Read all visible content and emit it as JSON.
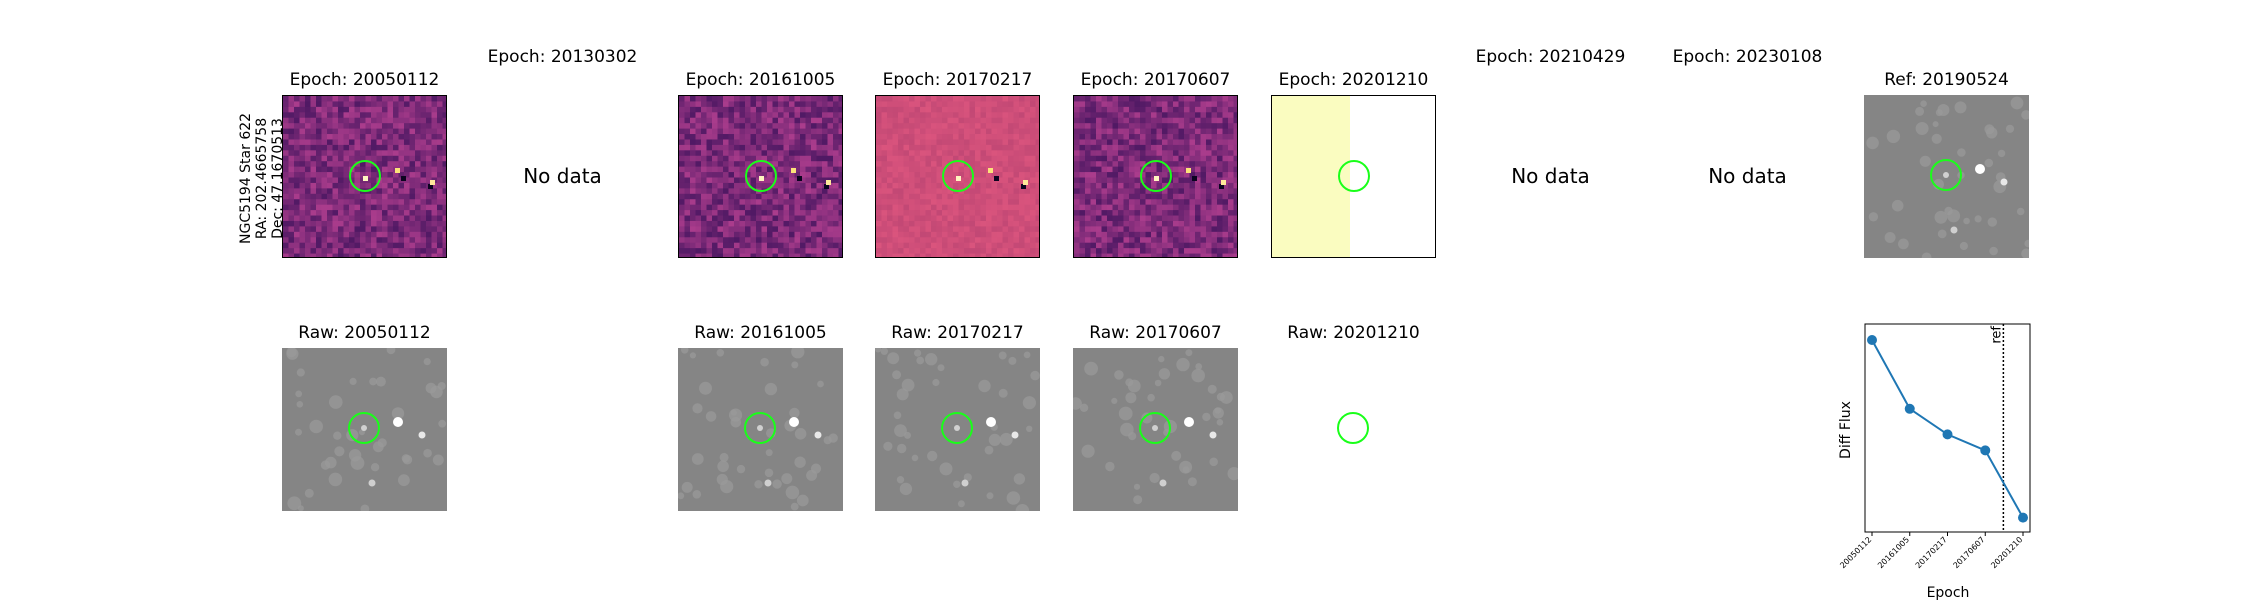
{
  "star_info": {
    "line1": "NGC5194 Star 622",
    "line2": "RA: 202.4665758",
    "line3": "Dec: 47.1670513"
  },
  "diff_row": [
    {
      "title": "Epoch: 20050112",
      "state": "image"
    },
    {
      "title": "Epoch: 20130302",
      "state": "nodata",
      "message": "No data"
    },
    {
      "title": "Epoch: 20161005",
      "state": "image"
    },
    {
      "title": "Epoch: 20170217",
      "state": "image"
    },
    {
      "title": "Epoch: 20170607",
      "state": "image"
    },
    {
      "title": "Epoch: 20201210",
      "state": "partial"
    },
    {
      "title": "Epoch: 20210429",
      "state": "nodata",
      "message": "No data"
    },
    {
      "title": "Epoch: 20230108",
      "state": "nodata",
      "message": "No data"
    },
    {
      "title": "Ref: 20190524",
      "state": "reference"
    }
  ],
  "raw_row": [
    {
      "title": "Raw: 20050112",
      "state": "image"
    },
    {
      "title": "Raw: 20161005",
      "state": "image"
    },
    {
      "title": "Raw: 20170217",
      "state": "image"
    },
    {
      "title": "Raw: 20170607",
      "state": "image"
    },
    {
      "title": "Raw: 20201210",
      "state": "empty"
    }
  ],
  "colors": {
    "aperture": "#19ff19",
    "diff_bg": "#7a2f78",
    "diff_bg_light": "#b5477a",
    "raw_bg": "#858585",
    "partial_fill": "#fafcc0",
    "series": "#1f77b4"
  },
  "chart_data": {
    "type": "line",
    "x": [
      "20050112",
      "20161005",
      "20170217",
      "20170607",
      "20201210"
    ],
    "series": [
      {
        "values": [
          0.95,
          0.52,
          0.36,
          0.26,
          -0.16
        ]
      }
    ],
    "ylim": [
      -0.25,
      1.05
    ],
    "xlabel": "Epoch",
    "ylabel": "Diff Flux",
    "reference_line": {
      "label": "ref",
      "position_between": [
        "20170607",
        "20201210"
      ]
    }
  }
}
